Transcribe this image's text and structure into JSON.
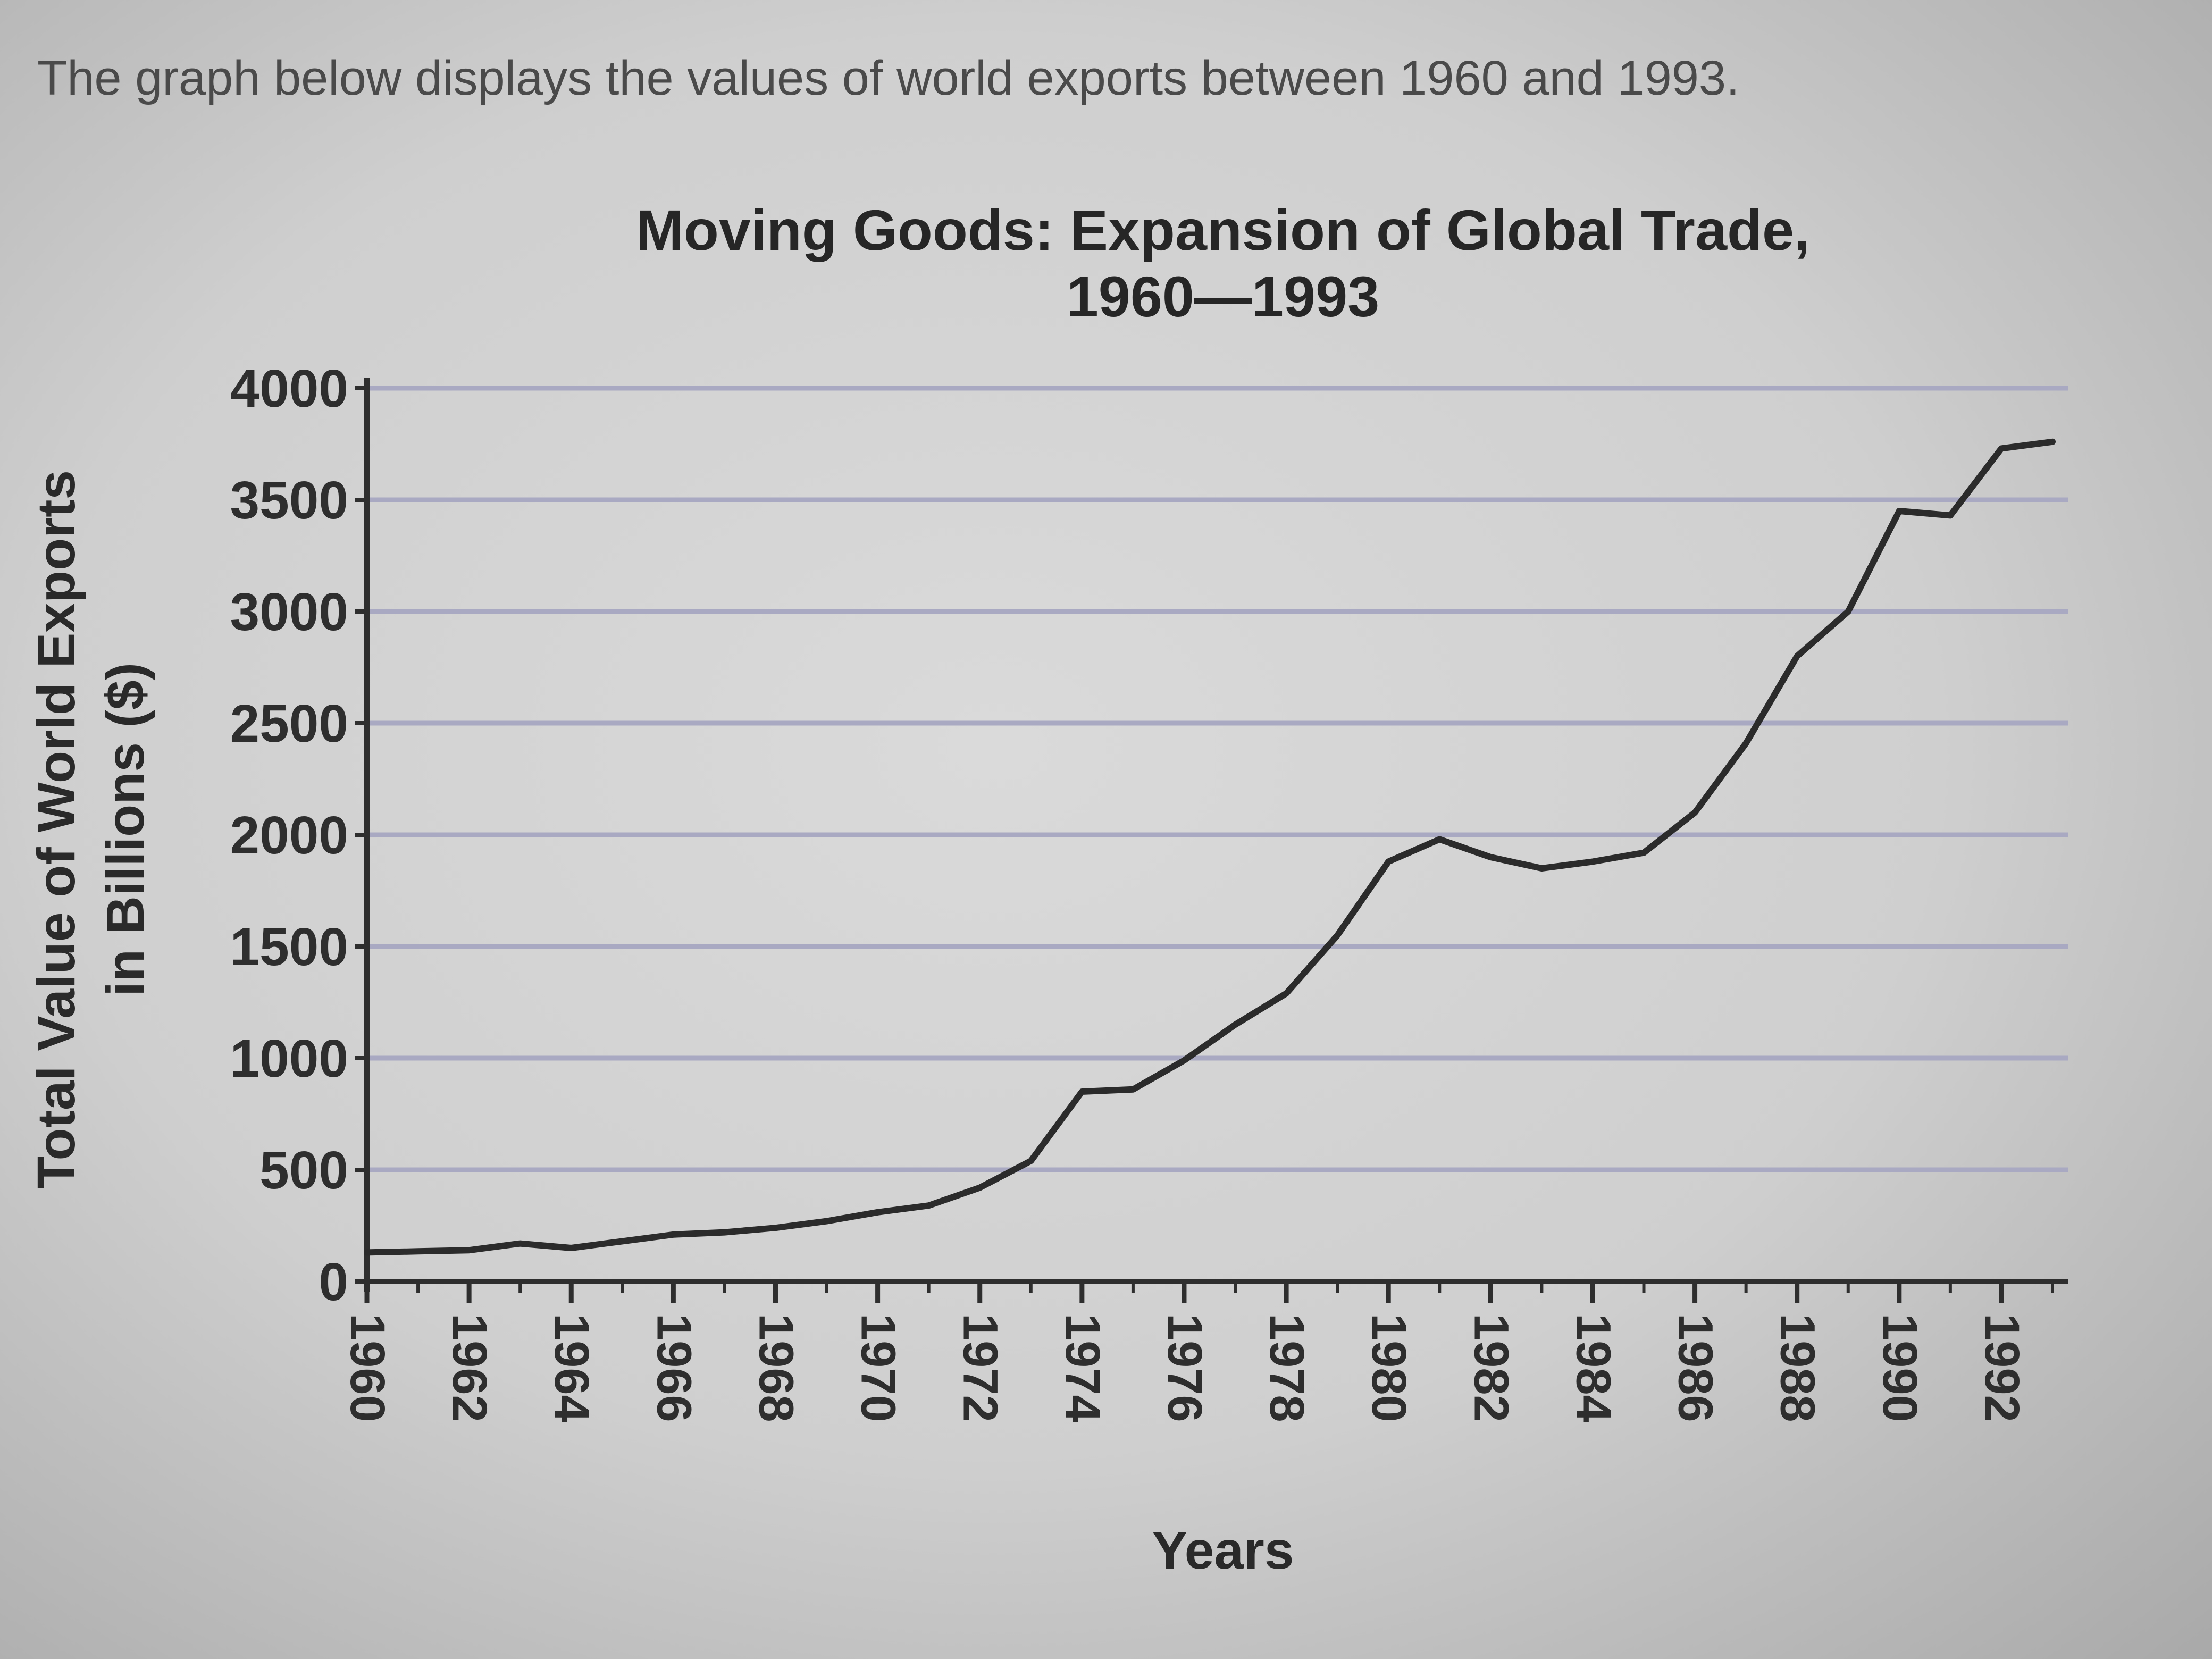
{
  "intro_text": "The graph below displays the values of world exports between 1960 and 1993.",
  "chart_data": {
    "type": "line",
    "title_lines": [
      "Moving Goods: Expansion of Global Trade,",
      "1960—1993"
    ],
    "xlabel": "Years",
    "ylabel_lines": [
      "Total Value of World Exports",
      "in Billions ($)"
    ],
    "ylim": [
      0,
      4000
    ],
    "y_ticks": [
      0,
      500,
      1000,
      1500,
      2000,
      2500,
      3000,
      3500,
      4000
    ],
    "x_ticks": [
      1960,
      1962,
      1964,
      1966,
      1968,
      1970,
      1972,
      1974,
      1976,
      1978,
      1980,
      1982,
      1984,
      1986,
      1988,
      1990,
      1992
    ],
    "grid": "horizontal",
    "line_color": "#2b2b2b",
    "grid_color": "#a9a9c2",
    "series": [
      {
        "x": [
          1960,
          1961,
          1962,
          1963,
          1964,
          1965,
          1966,
          1967,
          1968,
          1969,
          1970,
          1971,
          1972,
          1973,
          1974,
          1975,
          1976,
          1977,
          1978,
          1979,
          1980,
          1981,
          1982,
          1983,
          1984,
          1985,
          1986,
          1987,
          1988,
          1989,
          1990,
          1991,
          1992,
          1993
        ],
        "values": [
          130,
          135,
          140,
          170,
          150,
          180,
          210,
          220,
          240,
          270,
          310,
          340,
          420,
          540,
          850,
          860,
          990,
          1150,
          1290,
          1550,
          1880,
          1980,
          1900,
          1850,
          1880,
          1920,
          2100,
          2410,
          2800,
          3000,
          3450,
          3430,
          3730,
          3760
        ]
      }
    ]
  }
}
